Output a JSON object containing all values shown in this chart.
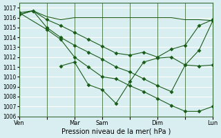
{
  "title": "Pression niveau de la mer( hPa )",
  "bg_color": "#d8eef0",
  "grid_color": "#ffffff",
  "line_color": "#1a5c1a",
  "ylim": [
    1006,
    1017.5
  ],
  "yticks": [
    1006,
    1007,
    1008,
    1009,
    1010,
    1011,
    1012,
    1013,
    1014,
    1015,
    1016,
    1017
  ],
  "xtick_labels": [
    "Ven",
    "",
    "Mar",
    "Sam",
    "",
    "Dim",
    "",
    "Lun"
  ],
  "xtick_positions": [
    0,
    2,
    4,
    6,
    8,
    10,
    12,
    14
  ],
  "series1": {
    "x": [
      0,
      1,
      2,
      3,
      4,
      5,
      6,
      7,
      8,
      9,
      10,
      11,
      12,
      13,
      14
    ],
    "y": [
      1016.5,
      1016.7,
      1016.1,
      1015.8,
      1016.0,
      1016.0,
      1016.0,
      1016.0,
      1016.0,
      1016.0,
      1016.0,
      1016.0,
      1015.8,
      1015.8,
      1015.7
    ]
  },
  "series2": {
    "x": [
      0,
      1,
      2,
      3,
      4,
      5,
      6,
      7,
      8,
      9,
      10,
      11,
      12,
      13,
      14
    ],
    "y": [
      1016.3,
      1016.7,
      1015.8,
      1015.2,
      1014.5,
      1013.8,
      1013.1,
      1012.4,
      1012.2,
      1012.5,
      1012.0,
      1012.8,
      1013.2,
      1015.2,
      1015.8
    ]
  },
  "series3": {
    "x": [
      0,
      1,
      2,
      3,
      4,
      5,
      6,
      7,
      8,
      9,
      10,
      11,
      12,
      13,
      14
    ],
    "y": [
      1016.3,
      1016.7,
      1015.0,
      1014.0,
      1013.2,
      1012.5,
      1011.8,
      1011.0,
      1010.5,
      1009.8,
      1009.1,
      1008.5,
      1011.2,
      1011.1,
      1011.2
    ]
  },
  "series4": {
    "x": [
      0,
      2,
      3,
      4,
      5,
      6,
      7,
      8,
      9,
      10,
      11,
      12,
      13,
      14
    ],
    "y": [
      1016.5,
      1014.8,
      1013.8,
      1012.0,
      1011.0,
      1010.0,
      1009.8,
      1009.1,
      1008.5,
      1007.8,
      1007.1,
      1006.5,
      1006.5,
      1007.0
    ]
  },
  "series5": {
    "x": [
      3,
      4,
      5,
      6,
      7,
      8,
      9,
      10,
      11,
      12,
      13,
      14
    ],
    "y": [
      1011.1,
      1011.5,
      1009.2,
      1008.7,
      1007.3,
      1009.5,
      1011.5,
      1011.9,
      1012.0,
      1011.2,
      1012.7,
      1015.7
    ]
  }
}
